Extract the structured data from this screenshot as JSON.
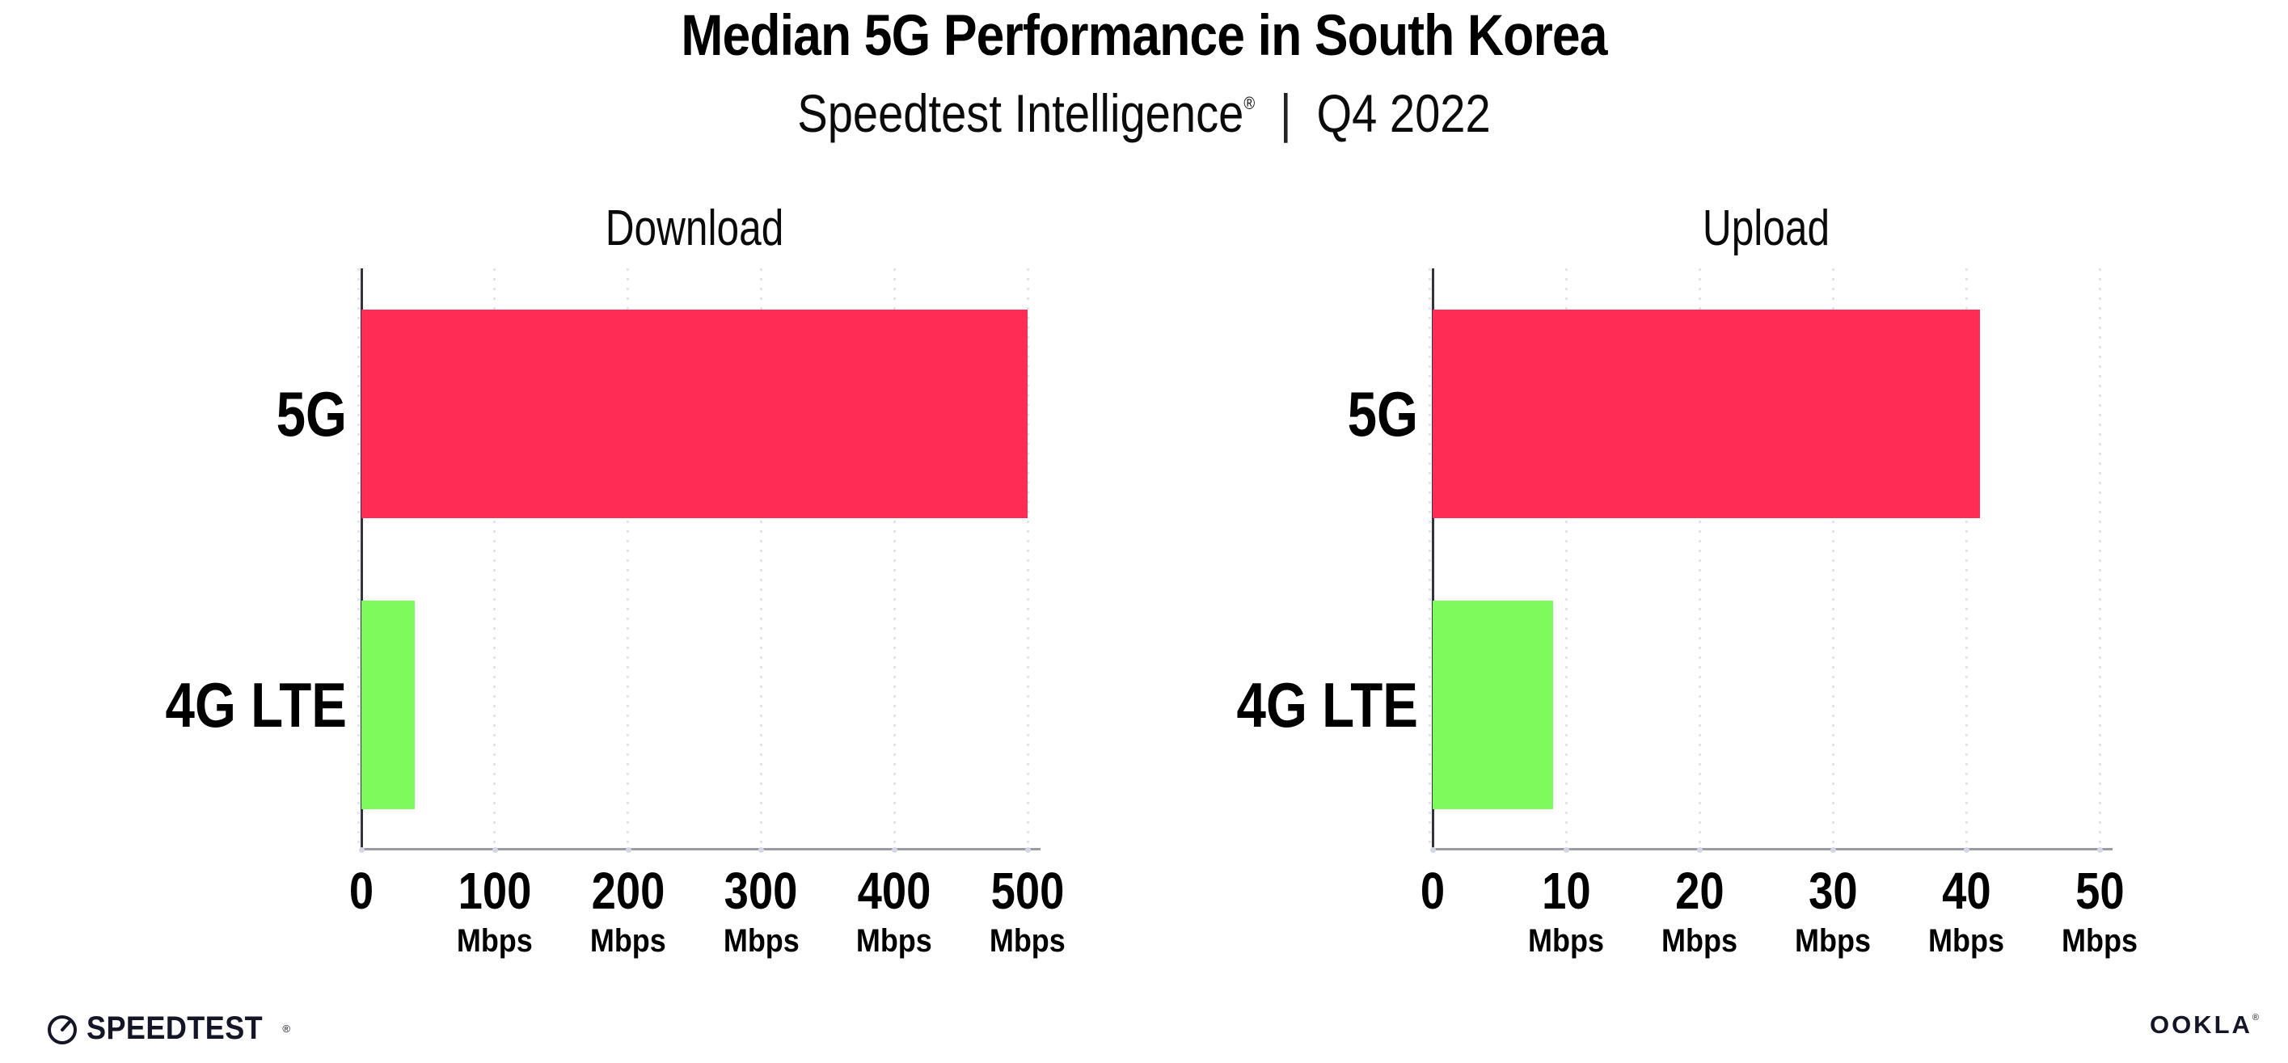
{
  "header": {
    "title": "Median 5G Performance in South Korea",
    "subtitle_brand": "Speedtest Intelligence",
    "subtitle_registered": "®",
    "subtitle_separator": "|",
    "subtitle_period": "Q4 2022"
  },
  "footer": {
    "speedtest": "SPEEDTEST",
    "speedtest_mark": "®",
    "ookla": "OOKLA",
    "ookla_mark": "®"
  },
  "colors": {
    "bar_5g": "#FF2D55",
    "bar_4g_lte": "#7FFA5C",
    "grid_dots": "#E2E4EF",
    "y_axis": "#33333F",
    "x_axis": "#9B9BA4",
    "text": "#000000",
    "background": "#FFFFFF"
  },
  "chart_data": [
    {
      "type": "bar",
      "orientation": "horizontal",
      "title": "Download",
      "categories": [
        "5G",
        "4G LTE"
      ],
      "values": [
        500,
        40
      ],
      "unit": "Mbps",
      "xlim": [
        0,
        500
      ],
      "xticks": [
        0,
        100,
        200,
        300,
        400,
        500
      ],
      "tick_unit_label": "Mbps",
      "bar_colors": [
        "#FF2D55",
        "#7FFA5C"
      ],
      "grid": "dotted vertical gridlines",
      "legend": "none"
    },
    {
      "type": "bar",
      "orientation": "horizontal",
      "title": "Upload",
      "categories": [
        "5G",
        "4G LTE"
      ],
      "values": [
        41,
        9
      ],
      "unit": "Mbps",
      "xlim": [
        0,
        50
      ],
      "xticks": [
        0,
        10,
        20,
        30,
        40,
        50
      ],
      "tick_unit_label": "Mbps",
      "bar_colors": [
        "#FF2D55",
        "#7FFA5C"
      ],
      "grid": "dotted vertical gridlines",
      "legend": "none"
    }
  ]
}
